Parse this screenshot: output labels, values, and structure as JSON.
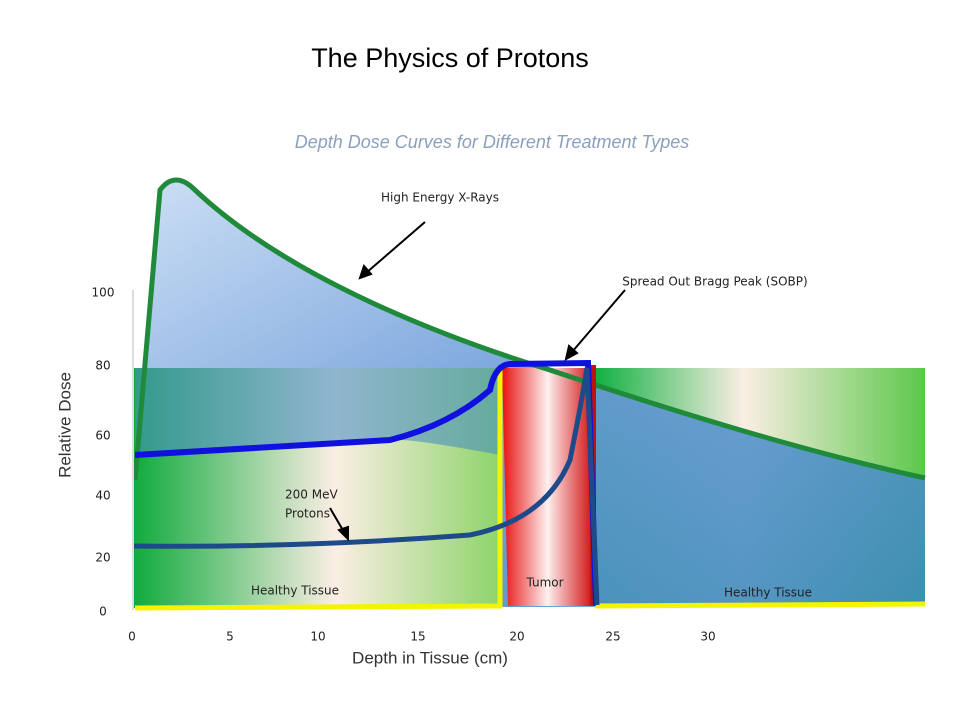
{
  "header": {
    "title": "The Physics of Protons",
    "subtitle": "Depth Dose Curves for Different Treatment Types"
  },
  "y_axis": {
    "label": "Relative Dose",
    "ticks": [
      "100",
      "80",
      "60",
      "40",
      "20",
      "0"
    ]
  },
  "x_axis": {
    "label": "Depth in Tissue  (cm)",
    "ticks": [
      "0",
      "5",
      "10",
      "15",
      "20",
      "25",
      "30"
    ]
  },
  "annotations": {
    "xrays": "High Energy X-Rays",
    "sobp": "Spread Out Bragg Peak (SOBP)",
    "protons_1": "200 MeV",
    "protons_2": "Protons",
    "healthy_left": "Healthy Tissue",
    "tumor": "Tumor",
    "healthy_right": "Healthy Tissue"
  }
}
